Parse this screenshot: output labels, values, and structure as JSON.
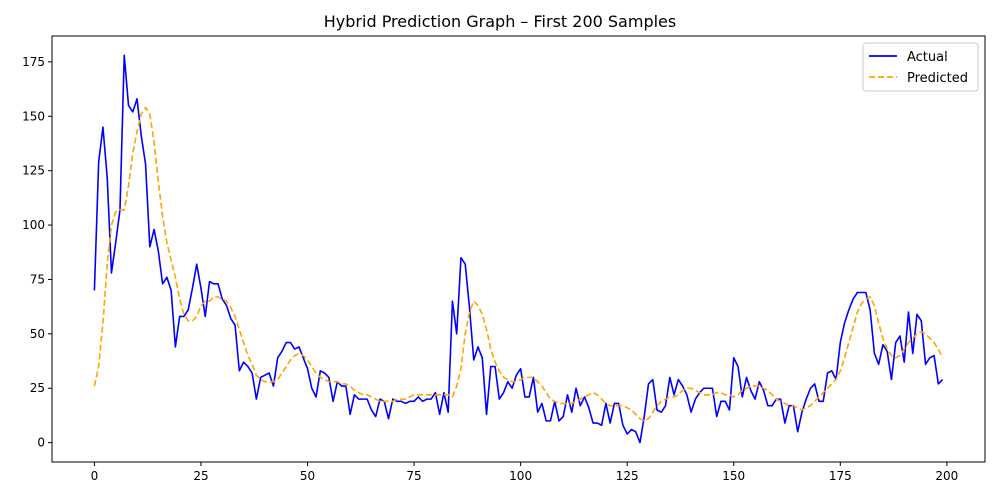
{
  "chart_data": {
    "type": "line",
    "title": "Hybrid Prediction Graph – First 200 Samples",
    "xlabel": "",
    "ylabel": "",
    "xlim": [
      -9.95,
      208.95
    ],
    "ylim": [
      -8.9,
      186.9
    ],
    "xticks": [
      0,
      25,
      50,
      75,
      100,
      125,
      150,
      175,
      200
    ],
    "yticks": [
      0,
      25,
      50,
      75,
      100,
      125,
      150,
      175
    ],
    "grid": false,
    "legend_position": "top-right",
    "series": [
      {
        "name": "Actual",
        "color": "#0000ff",
        "style": "solid",
        "x": [
          0,
          1,
          2,
          3,
          4,
          5,
          6,
          7,
          8,
          9,
          10,
          11,
          12,
          13,
          14,
          15,
          16,
          17,
          18,
          19,
          20,
          21,
          22,
          23,
          24,
          25,
          26,
          27,
          28,
          29,
          30,
          31,
          32,
          33,
          34,
          35,
          36,
          37,
          38,
          39,
          40,
          41,
          42,
          43,
          44,
          45,
          46,
          47,
          48,
          49,
          50,
          51,
          52,
          53,
          54,
          55,
          56,
          57,
          58,
          59,
          60,
          61,
          62,
          63,
          64,
          65,
          66,
          67,
          68,
          69,
          70,
          71,
          72,
          73,
          74,
          75,
          76,
          77,
          78,
          79,
          80,
          81,
          82,
          83,
          84,
          85,
          86,
          87,
          88,
          89,
          90,
          91,
          92,
          93,
          94,
          95,
          96,
          97,
          98,
          99,
          100,
          101,
          102,
          103,
          104,
          105,
          106,
          107,
          108,
          109,
          110,
          111,
          112,
          113,
          114,
          115,
          116,
          117,
          118,
          119,
          120,
          121,
          122,
          123,
          124,
          125,
          126,
          127,
          128,
          129,
          130,
          131,
          132,
          133,
          134,
          135,
          136,
          137,
          138,
          139,
          140,
          141,
          142,
          143,
          144,
          145,
          146,
          147,
          148,
          149,
          150,
          151,
          152,
          153,
          154,
          155,
          156,
          157,
          158,
          159,
          160,
          161,
          162,
          163,
          164,
          165,
          166,
          167,
          168,
          169,
          170,
          171,
          172,
          173,
          174,
          175,
          176,
          177,
          178,
          179,
          180,
          181,
          182,
          183,
          184,
          185,
          186,
          187,
          188,
          189,
          190,
          191,
          192,
          193,
          194,
          195,
          196,
          197,
          198,
          199
        ],
        "values": [
          70,
          129,
          145,
          122,
          78,
          92,
          107,
          178,
          155,
          152,
          158,
          141,
          128,
          90,
          98,
          88,
          73,
          76,
          70,
          44,
          58,
          58,
          61,
          71,
          82,
          71,
          58,
          74,
          73,
          73,
          66,
          63,
          57,
          54,
          33,
          37,
          35,
          32,
          20,
          30,
          31,
          32,
          26,
          39,
          42,
          46,
          46,
          43,
          44,
          39,
          34,
          25,
          21,
          33,
          32,
          30,
          19,
          28,
          26,
          26,
          13,
          22,
          20,
          20,
          20,
          15,
          12,
          20,
          19,
          11,
          20,
          19,
          19,
          18,
          19,
          19,
          21,
          19,
          20,
          20,
          23,
          13,
          23,
          14,
          65,
          50,
          85,
          82,
          62,
          38,
          44,
          39,
          13,
          35,
          35,
          20,
          23,
          28,
          25,
          31,
          34,
          21,
          21,
          30,
          14,
          18,
          10,
          10,
          19,
          10,
          12,
          22,
          14,
          25,
          17,
          21,
          16,
          9,
          9,
          8,
          18,
          9,
          18,
          18,
          8,
          4,
          6,
          5,
          0,
          12,
          27,
          29,
          15,
          14,
          17,
          30,
          22,
          29,
          26,
          22,
          14,
          20,
          23,
          25,
          25,
          25,
          12,
          19,
          19,
          15,
          39,
          35,
          21,
          30,
          24,
          20,
          28,
          24,
          17,
          17,
          20,
          20,
          9,
          17,
          17,
          5,
          14,
          20,
          25,
          27,
          19,
          19,
          32,
          33,
          29,
          46,
          55,
          61,
          66,
          69,
          69,
          69,
          61,
          41,
          36,
          45,
          42,
          29,
          46,
          49,
          37,
          60,
          41,
          59,
          56,
          36,
          39,
          40,
          27,
          29
        ]
      },
      {
        "name": "Predicted",
        "color": "#ffa500",
        "style": "dashed",
        "x": [
          0,
          1,
          2,
          3,
          4,
          5,
          6,
          7,
          8,
          9,
          10,
          11,
          12,
          13,
          14,
          15,
          16,
          17,
          18,
          19,
          20,
          21,
          22,
          23,
          24,
          25,
          26,
          27,
          28,
          29,
          30,
          31,
          32,
          33,
          34,
          35,
          36,
          37,
          38,
          39,
          40,
          41,
          42,
          43,
          44,
          45,
          46,
          47,
          48,
          49,
          50,
          51,
          52,
          53,
          54,
          55,
          56,
          57,
          58,
          59,
          60,
          61,
          62,
          63,
          64,
          65,
          66,
          67,
          68,
          69,
          70,
          71,
          72,
          73,
          74,
          75,
          76,
          77,
          78,
          79,
          80,
          81,
          82,
          83,
          84,
          85,
          86,
          87,
          88,
          89,
          90,
          91,
          92,
          93,
          94,
          95,
          96,
          97,
          98,
          99,
          100,
          101,
          102,
          103,
          104,
          105,
          106,
          107,
          108,
          109,
          110,
          111,
          112,
          113,
          114,
          115,
          116,
          117,
          118,
          119,
          120,
          121,
          122,
          123,
          124,
          125,
          126,
          127,
          128,
          129,
          130,
          131,
          132,
          133,
          134,
          135,
          136,
          137,
          138,
          139,
          140,
          141,
          142,
          143,
          144,
          145,
          146,
          147,
          148,
          149,
          150,
          151,
          152,
          153,
          154,
          155,
          156,
          157,
          158,
          159,
          160,
          161,
          162,
          163,
          164,
          165,
          166,
          167,
          168,
          169,
          170,
          171,
          172,
          173,
          174,
          175,
          176,
          177,
          178,
          179,
          180,
          181,
          182,
          183,
          184,
          185,
          186,
          187,
          188,
          189,
          190,
          191,
          192,
          193,
          194,
          195,
          196,
          197,
          198,
          199
        ],
        "values": [
          26,
          35,
          55,
          82,
          100,
          106,
          107,
          107,
          118,
          133,
          143,
          151,
          154,
          151,
          138,
          120,
          104,
          92,
          84,
          76,
          66,
          59,
          56,
          56,
          58,
          63,
          65,
          65,
          67,
          67,
          66,
          65,
          62,
          58,
          52,
          46,
          40,
          36,
          31,
          29,
          28,
          28,
          28,
          29,
          32,
          35,
          38,
          40,
          41,
          40,
          38,
          35,
          32,
          30,
          29,
          28,
          28,
          28,
          27,
          27,
          26,
          24,
          23,
          22,
          22,
          21,
          20,
          19,
          19,
          19,
          19,
          20,
          20,
          20,
          21,
          22,
          22,
          22,
          22,
          22,
          22,
          22,
          22,
          22,
          21,
          26,
          34,
          50,
          60,
          65,
          63,
          59,
          52,
          43,
          37,
          33,
          30,
          29,
          28,
          28,
          29,
          30,
          30,
          30,
          28,
          26,
          23,
          20,
          19,
          18,
          18,
          18,
          18,
          19,
          20,
          21,
          22,
          23,
          22,
          20,
          18,
          17,
          17,
          17,
          17,
          16,
          15,
          13,
          11,
          10,
          11,
          14,
          17,
          19,
          20,
          21,
          21,
          22,
          24,
          25,
          25,
          24,
          23,
          22,
          22,
          22,
          23,
          23,
          22,
          22,
          21,
          22,
          24,
          25,
          26,
          26,
          26,
          25,
          24,
          22,
          20,
          19,
          18,
          17,
          17,
          16,
          15,
          16,
          17,
          19,
          21,
          23,
          25,
          27,
          29,
          33,
          39,
          46,
          53,
          60,
          64,
          66,
          67,
          63,
          55,
          48,
          43,
          40,
          39,
          40,
          43,
          46,
          48,
          50,
          51,
          50,
          48,
          46,
          43,
          39
        ]
      }
    ]
  }
}
